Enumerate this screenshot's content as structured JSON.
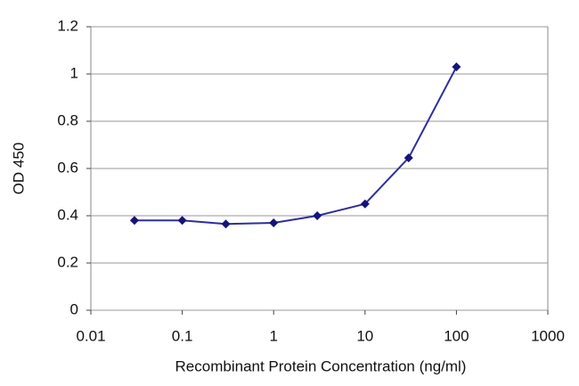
{
  "chart_data": {
    "type": "line",
    "xscale": "log",
    "grid": true,
    "xlabel": "Recombinant Protein Concentration (ng/ml)",
    "ylabel": "OD 450",
    "series": [
      {
        "name": "OD 450",
        "color": "#2e2e9e",
        "marker_color": "#13137a",
        "x": [
          0.03,
          0.1,
          0.3,
          1,
          3,
          10,
          30,
          100
        ],
        "values": [
          0.38,
          0.38,
          0.365,
          0.37,
          0.4,
          0.45,
          0.645,
          1.03
        ]
      }
    ],
    "xlim": [
      0.01,
      1000
    ],
    "xticks": [
      0.01,
      0.1,
      1,
      10,
      100,
      1000
    ],
    "ylim": [
      0,
      1.2
    ],
    "yticks": [
      0,
      0.2,
      0.4,
      0.6,
      0.8,
      1,
      1.2
    ]
  }
}
